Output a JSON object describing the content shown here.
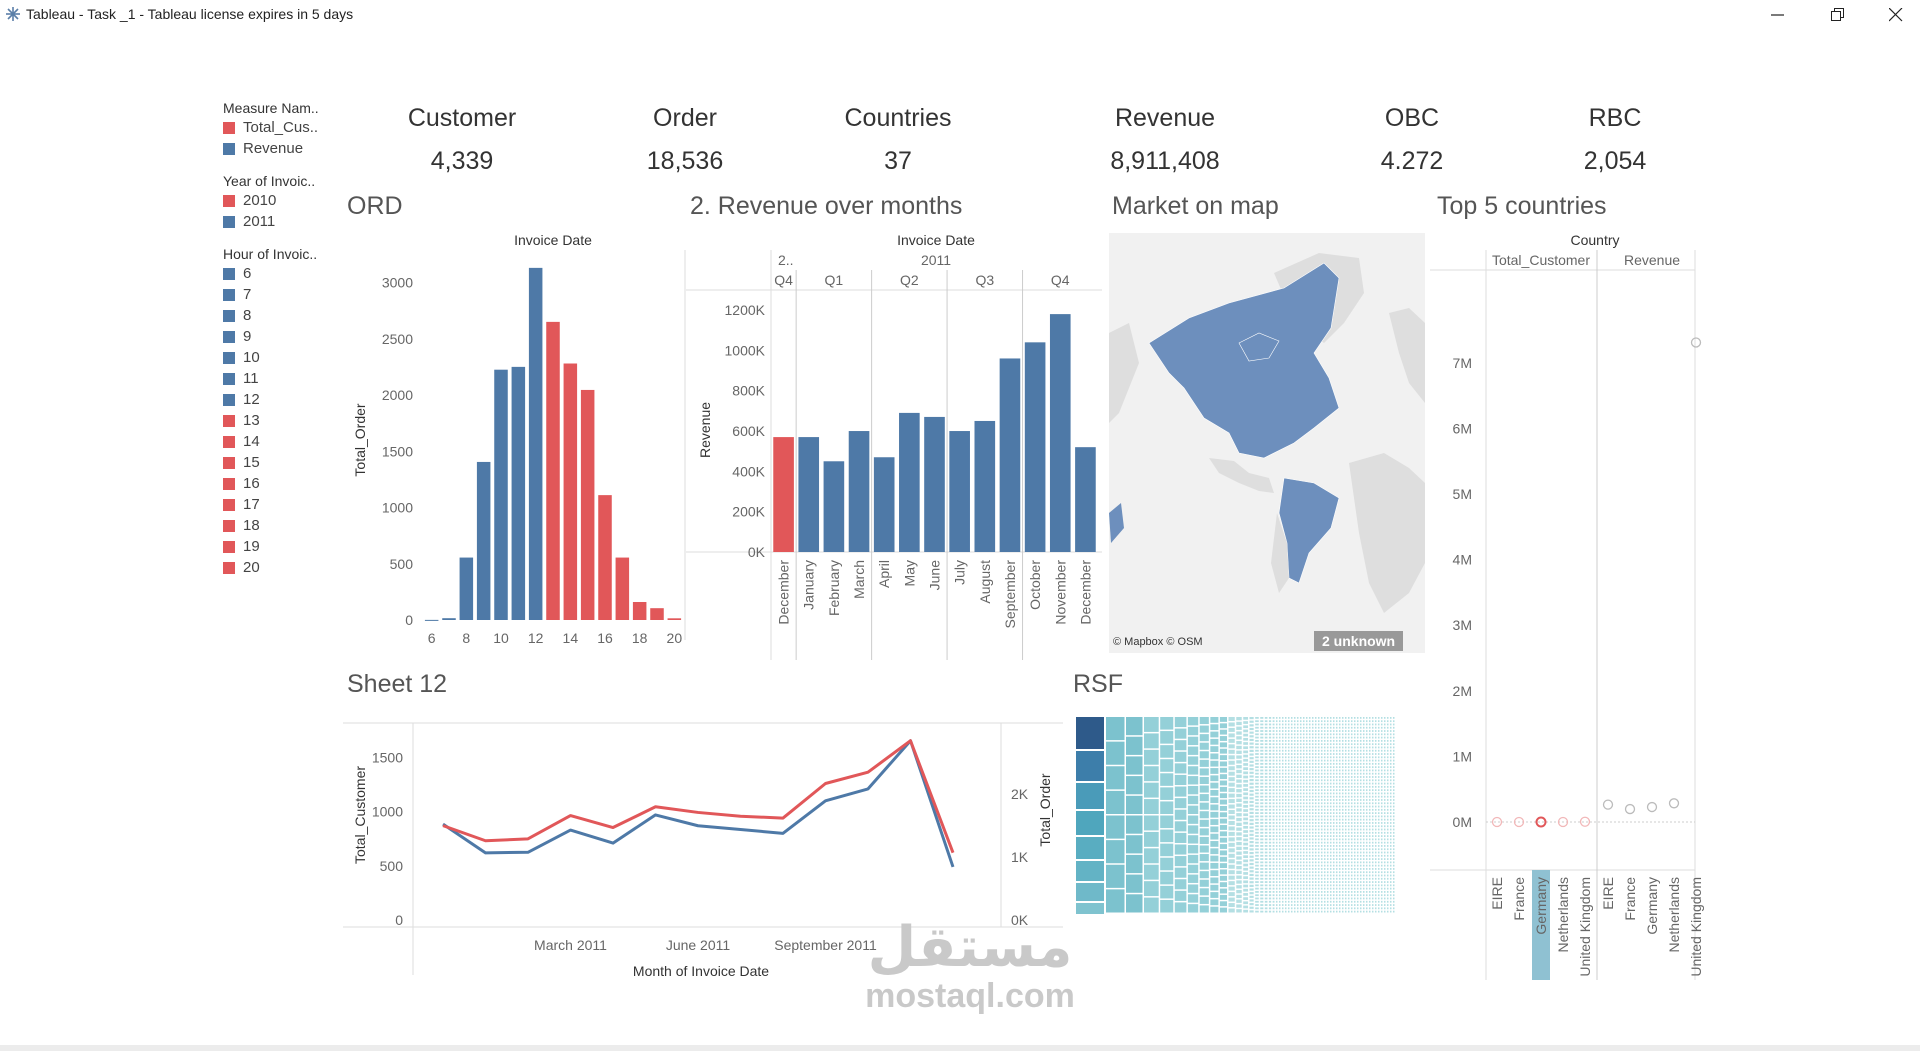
{
  "window": {
    "title": "Tableau - Task _1 - Tableau license expires in 5 days"
  },
  "colors": {
    "red": "#e15759",
    "blue": "#4e79a7",
    "teal": "#8fc9d3",
    "dark": "#2e5a8a"
  },
  "legends": [
    {
      "title": "Measure Nam..",
      "items": [
        {
          "label": "Total_Cus..",
          "color": "#e15759"
        },
        {
          "label": "Revenue",
          "color": "#4e79a7"
        }
      ]
    },
    {
      "title": "Year of Invoic..",
      "items": [
        {
          "label": "2010",
          "color": "#e15759"
        },
        {
          "label": "2011",
          "color": "#4e79a7"
        }
      ]
    },
    {
      "title": "Hour of Invoic..",
      "items": [
        {
          "label": "6",
          "color": "#4e79a7"
        },
        {
          "label": "7",
          "color": "#4e79a7"
        },
        {
          "label": "8",
          "color": "#4e79a7"
        },
        {
          "label": "9",
          "color": "#4e79a7"
        },
        {
          "label": "10",
          "color": "#4e79a7"
        },
        {
          "label": "11",
          "color": "#4e79a7"
        },
        {
          "label": "12",
          "color": "#4e79a7"
        },
        {
          "label": "13",
          "color": "#e15759"
        },
        {
          "label": "14",
          "color": "#e15759"
        },
        {
          "label": "15",
          "color": "#e15759"
        },
        {
          "label": "16",
          "color": "#e15759"
        },
        {
          "label": "17",
          "color": "#e15759"
        },
        {
          "label": "18",
          "color": "#e15759"
        },
        {
          "label": "19",
          "color": "#e15759"
        },
        {
          "label": "20",
          "color": "#e15759"
        }
      ]
    }
  ],
  "kpis": [
    {
      "label": "Customer",
      "value": "4,339"
    },
    {
      "label": "Order",
      "value": "18,536"
    },
    {
      "label": "Countries",
      "value": "37"
    },
    {
      "label": "Revenue",
      "value": "8,911,408"
    },
    {
      "label": "OBC",
      "value": "4.272"
    },
    {
      "label": "RBC",
      "value": "2,054"
    }
  ],
  "sheets": {
    "ord": "ORD",
    "revenue": "2. Revenue over months",
    "map": "Market on map",
    "top5": "Top 5 countries",
    "sheet12": "Sheet 12",
    "rsf": "RSF"
  },
  "map": {
    "attribution": "© Mapbox © OSM",
    "unknown_badge": "2 unknown"
  },
  "watermark": {
    "arabic": "مستقل",
    "latin": "mostaql.com"
  },
  "chart_data": [
    {
      "name": "ORD",
      "type": "bar",
      "header": "Invoice Date",
      "ylabel": "Total_Order",
      "x": [
        6,
        7,
        8,
        9,
        10,
        11,
        12,
        13,
        14,
        15,
        16,
        17,
        18,
        19,
        20
      ],
      "xticks": [
        "6",
        "8",
        "10",
        "12",
        "14",
        "16",
        "18",
        "20"
      ],
      "values": [
        1,
        16,
        555,
        1405,
        2225,
        2250,
        3130,
        2650,
        2280,
        2045,
        1110,
        555,
        160,
        105,
        15
      ],
      "colors": [
        "blue",
        "blue",
        "blue",
        "blue",
        "blue",
        "blue",
        "blue",
        "red",
        "red",
        "red",
        "red",
        "red",
        "red",
        "red",
        "red"
      ],
      "ylim": [
        0,
        3200
      ],
      "yticks": [
        0,
        500,
        1000,
        1500,
        2000,
        2500,
        3000
      ]
    },
    {
      "name": "2. Revenue over months",
      "type": "bar",
      "header": "Invoice Date",
      "ylabel": "Revenue",
      "year_labels": [
        "2..",
        "2011"
      ],
      "quarters": [
        "Q4",
        "Q1",
        "Q2",
        "Q3",
        "Q4"
      ],
      "categories": [
        "December",
        "January",
        "February",
        "March",
        "April",
        "May",
        "June",
        "July",
        "August",
        "September",
        "October",
        "November",
        "December"
      ],
      "values": [
        570000,
        570000,
        450000,
        600000,
        470000,
        690000,
        670000,
        600000,
        650000,
        960000,
        1040000,
        1180000,
        520000
      ],
      "colors": [
        "red",
        "blue",
        "blue",
        "blue",
        "blue",
        "blue",
        "blue",
        "blue",
        "blue",
        "blue",
        "blue",
        "blue",
        "blue"
      ],
      "ylim": [
        0,
        1250000
      ],
      "yticks": [
        {
          "v": 0,
          "t": "0K"
        },
        {
          "v": 200000,
          "t": "200K"
        },
        {
          "v": 400000,
          "t": "400K"
        },
        {
          "v": 600000,
          "t": "600K"
        },
        {
          "v": 800000,
          "t": "800K"
        },
        {
          "v": 1000000,
          "t": "1000K"
        },
        {
          "v": 1200000,
          "t": "1200K"
        }
      ]
    },
    {
      "name": "Top 5 countries",
      "type": "scatter",
      "header": "Country",
      "panes": [
        "Total_Customer",
        "Revenue"
      ],
      "countries": [
        "EIRE",
        "France",
        "Germany",
        "Netherlands",
        "United Kingdom"
      ],
      "highlight": "Germany",
      "series": [
        {
          "name": "Total_Customer",
          "values": [
            3,
            87,
            95,
            9,
            3950
          ]
        },
        {
          "name": "Revenue",
          "values": [
            265000,
            197000,
            228000,
            285000,
            7310000
          ]
        }
      ],
      "yticks": [
        {
          "v": 0,
          "t": "0M"
        },
        {
          "v": 1000000,
          "t": "1M"
        },
        {
          "v": 2000000,
          "t": "2M"
        },
        {
          "v": 3000000,
          "t": "3M"
        },
        {
          "v": 4000000,
          "t": "4M"
        },
        {
          "v": 5000000,
          "t": "5M"
        },
        {
          "v": 6000000,
          "t": "6M"
        },
        {
          "v": 7000000,
          "t": "7M"
        }
      ]
    },
    {
      "name": "Sheet 12",
      "type": "line",
      "xlabel": "Month of Invoice Date",
      "ylabel": "Total_Customer",
      "y2label": "Total_Order",
      "xticks": [
        {
          "i": 3,
          "t": "March 2011"
        },
        {
          "i": 6,
          "t": "June 2011"
        },
        {
          "i": 9,
          "t": "September 2011"
        }
      ],
      "yticks": [
        {
          "v": 0,
          "t": "0"
        },
        {
          "v": 500,
          "t": "500"
        },
        {
          "v": 1000,
          "t": "1000"
        },
        {
          "v": 1500,
          "t": "1500"
        }
      ],
      "y2ticks": [
        {
          "v": 0,
          "t": "0K"
        },
        {
          "v": 1000,
          "t": "1K"
        },
        {
          "v": 2000,
          "t": "2K"
        }
      ],
      "ylim": [
        0,
        1800
      ],
      "y2lim": [
        0,
        3100
      ],
      "series": [
        {
          "name": "Total_Customer",
          "color": "blue",
          "values": [
            885,
            620,
            625,
            830,
            710,
            970,
            870,
            835,
            800,
            1100,
            1210,
            1655,
            490
          ]
        },
        {
          "name": "Total_Order",
          "color": "red",
          "values": [
            1500,
            1260,
            1290,
            1660,
            1470,
            1800,
            1710,
            1650,
            1620,
            2170,
            2350,
            2850,
            1070
          ]
        }
      ]
    },
    {
      "name": "RSF",
      "type": "heatmap",
      "columns": 40,
      "rows": 8
    }
  ]
}
